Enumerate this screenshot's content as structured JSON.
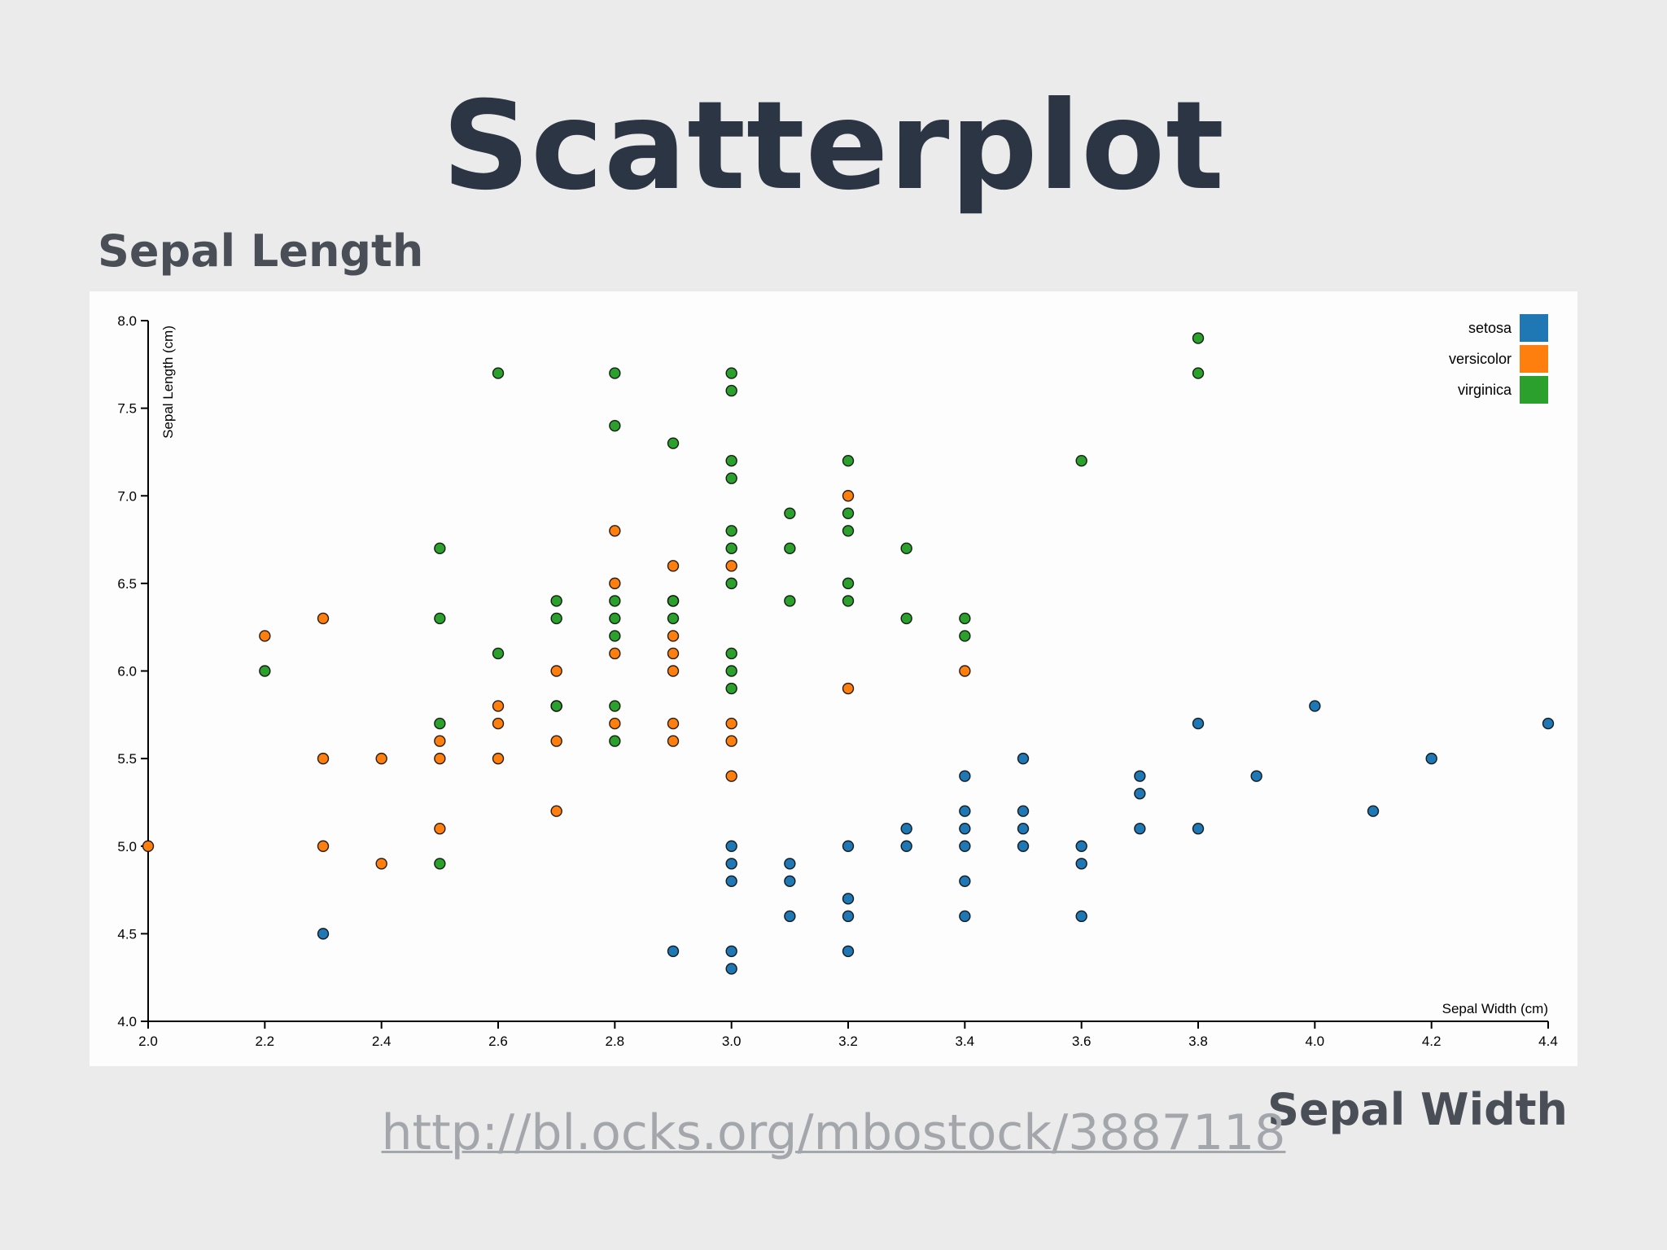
{
  "slide": {
    "title": "Scatterplot",
    "y_side_label": "Sepal Length",
    "x_side_label": "Sepal Width",
    "link": "http://bl.ocks.org/mbostock/3887118"
  },
  "colors": {
    "setosa": "#1f77b4",
    "versicolor": "#ff7f0e",
    "virginica": "#2ca02c"
  },
  "chart_data": {
    "type": "scatter",
    "xlabel": "Sepal Width (cm)",
    "ylabel": "Sepal Length (cm)",
    "xlim": [
      2.0,
      4.4
    ],
    "ylim": [
      4.0,
      8.0
    ],
    "x_ticks": [
      "2.0",
      "2.2",
      "2.4",
      "2.6",
      "2.8",
      "3.0",
      "3.2",
      "3.4",
      "3.6",
      "3.8",
      "4.0",
      "4.2",
      "4.4"
    ],
    "y_ticks": [
      "4.0",
      "4.5",
      "5.0",
      "5.5",
      "6.0",
      "6.5",
      "7.0",
      "7.5",
      "8.0"
    ],
    "grid": false,
    "legend_position": "top-right",
    "series": [
      {
        "name": "setosa",
        "points": [
          [
            2.3,
            4.5
          ],
          [
            2.9,
            4.4
          ],
          [
            3.0,
            5.0
          ],
          [
            3.0,
            4.9
          ],
          [
            3.0,
            4.8
          ],
          [
            3.0,
            4.4
          ],
          [
            3.0,
            4.3
          ],
          [
            3.1,
            4.9
          ],
          [
            3.1,
            4.8
          ],
          [
            3.1,
            4.6
          ],
          [
            3.2,
            5.0
          ],
          [
            3.2,
            4.7
          ],
          [
            3.2,
            4.6
          ],
          [
            3.2,
            4.4
          ],
          [
            3.3,
            5.1
          ],
          [
            3.3,
            5.0
          ],
          [
            3.4,
            5.4
          ],
          [
            3.4,
            5.2
          ],
          [
            3.4,
            5.1
          ],
          [
            3.4,
            5.0
          ],
          [
            3.4,
            4.8
          ],
          [
            3.4,
            4.6
          ],
          [
            3.5,
            5.5
          ],
          [
            3.5,
            5.2
          ],
          [
            3.5,
            5.1
          ],
          [
            3.5,
            5.0
          ],
          [
            3.6,
            5.0
          ],
          [
            3.6,
            4.9
          ],
          [
            3.6,
            4.6
          ],
          [
            3.7,
            5.4
          ],
          [
            3.7,
            5.3
          ],
          [
            3.7,
            5.1
          ],
          [
            3.8,
            5.7
          ],
          [
            3.8,
            5.1
          ],
          [
            3.9,
            5.4
          ],
          [
            4.0,
            5.8
          ],
          [
            4.1,
            5.2
          ],
          [
            4.2,
            5.5
          ],
          [
            4.4,
            5.7
          ]
        ]
      },
      {
        "name": "versicolor",
        "points": [
          [
            2.0,
            5.0
          ],
          [
            2.2,
            6.2
          ],
          [
            2.3,
            6.3
          ],
          [
            2.3,
            5.5
          ],
          [
            2.3,
            5.0
          ],
          [
            2.4,
            5.5
          ],
          [
            2.4,
            4.9
          ],
          [
            2.5,
            5.6
          ],
          [
            2.5,
            5.5
          ],
          [
            2.5,
            5.1
          ],
          [
            2.6,
            5.8
          ],
          [
            2.6,
            5.7
          ],
          [
            2.6,
            5.5
          ],
          [
            2.7,
            6.0
          ],
          [
            2.7,
            5.8
          ],
          [
            2.7,
            5.6
          ],
          [
            2.7,
            5.2
          ],
          [
            2.8,
            6.8
          ],
          [
            2.8,
            6.5
          ],
          [
            2.8,
            6.1
          ],
          [
            2.8,
            5.7
          ],
          [
            2.9,
            6.6
          ],
          [
            2.9,
            6.4
          ],
          [
            2.9,
            6.2
          ],
          [
            2.9,
            6.1
          ],
          [
            2.9,
            6.0
          ],
          [
            2.9,
            5.7
          ],
          [
            2.9,
            5.6
          ],
          [
            3.0,
            6.6
          ],
          [
            3.0,
            5.7
          ],
          [
            3.0,
            5.6
          ],
          [
            3.0,
            5.4
          ],
          [
            3.2,
            7.0
          ],
          [
            3.2,
            5.9
          ],
          [
            3.4,
            6.0
          ]
        ]
      },
      {
        "name": "virginica",
        "points": [
          [
            2.2,
            6.0
          ],
          [
            2.5,
            6.7
          ],
          [
            2.5,
            6.3
          ],
          [
            2.5,
            5.7
          ],
          [
            2.5,
            4.9
          ],
          [
            2.6,
            7.7
          ],
          [
            2.6,
            6.1
          ],
          [
            2.7,
            6.4
          ],
          [
            2.7,
            6.3
          ],
          [
            2.7,
            5.8
          ],
          [
            2.8,
            7.7
          ],
          [
            2.8,
            7.4
          ],
          [
            2.8,
            6.4
          ],
          [
            2.8,
            6.3
          ],
          [
            2.8,
            6.2
          ],
          [
            2.8,
            5.8
          ],
          [
            2.8,
            5.6
          ],
          [
            2.9,
            7.3
          ],
          [
            2.9,
            6.4
          ],
          [
            2.9,
            6.3
          ],
          [
            3.0,
            7.7
          ],
          [
            3.0,
            7.6
          ],
          [
            3.0,
            7.2
          ],
          [
            3.0,
            7.1
          ],
          [
            3.0,
            6.8
          ],
          [
            3.0,
            6.7
          ],
          [
            3.0,
            6.5
          ],
          [
            3.0,
            6.1
          ],
          [
            3.0,
            6.0
          ],
          [
            3.0,
            5.9
          ],
          [
            3.1,
            6.9
          ],
          [
            3.1,
            6.7
          ],
          [
            3.1,
            6.4
          ],
          [
            3.2,
            7.2
          ],
          [
            3.2,
            6.9
          ],
          [
            3.2,
            6.8
          ],
          [
            3.2,
            6.5
          ],
          [
            3.2,
            6.4
          ],
          [
            3.3,
            6.7
          ],
          [
            3.3,
            6.3
          ],
          [
            3.4,
            6.3
          ],
          [
            3.4,
            6.2
          ],
          [
            3.6,
            7.2
          ],
          [
            3.8,
            7.9
          ],
          [
            3.8,
            7.7
          ]
        ]
      }
    ]
  }
}
